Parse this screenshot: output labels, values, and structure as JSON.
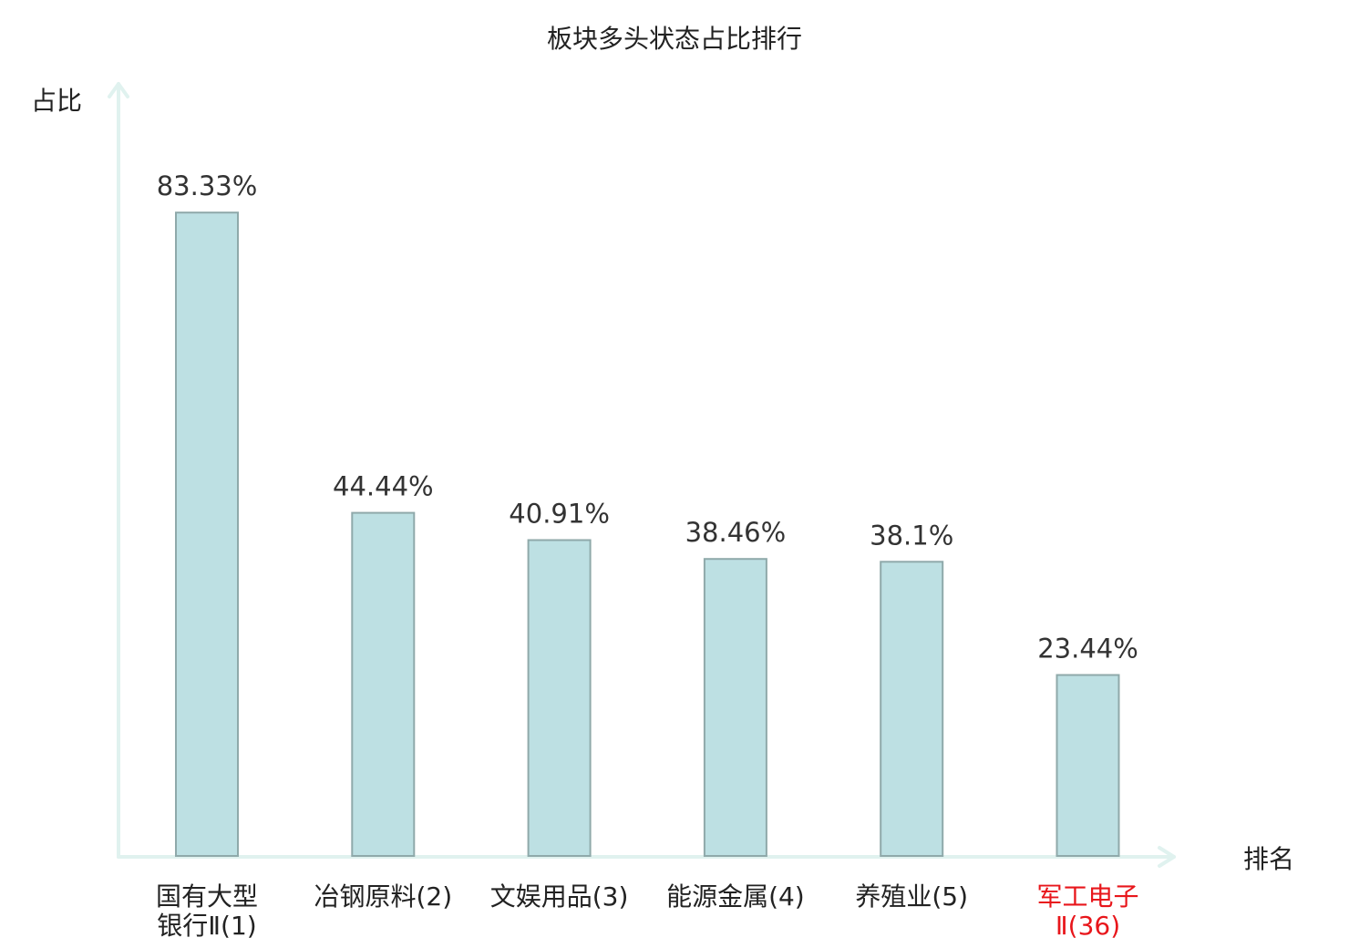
{
  "chart_data": {
    "type": "bar",
    "title": "板块多头状态占比排行",
    "ylabel": "占比",
    "xlabel": "排名",
    "ylim": [
      0,
      100
    ],
    "grid": false,
    "legend": "none",
    "categories": [
      [
        "国有大型",
        "银行Ⅱ(1)"
      ],
      [
        "冶钢原料(2)"
      ],
      [
        "文娱用品(3)"
      ],
      [
        "能源金属(4)"
      ],
      [
        "养殖业(5)"
      ],
      [
        "军工电子",
        "Ⅱ(36)"
      ]
    ],
    "values": [
      83.33,
      44.44,
      40.91,
      38.46,
      38.1,
      23.44
    ],
    "value_labels": [
      "83.33%",
      "44.44%",
      "40.91%",
      "38.46%",
      "38.1%",
      "23.44%"
    ],
    "highlight_index": 5,
    "colors": {
      "bar_fill": "#bde0e3",
      "bar_stroke": "#8fa9aa",
      "axis": "#e0f2ef",
      "highlight_text": "#e8161b",
      "text": "#222222"
    }
  }
}
